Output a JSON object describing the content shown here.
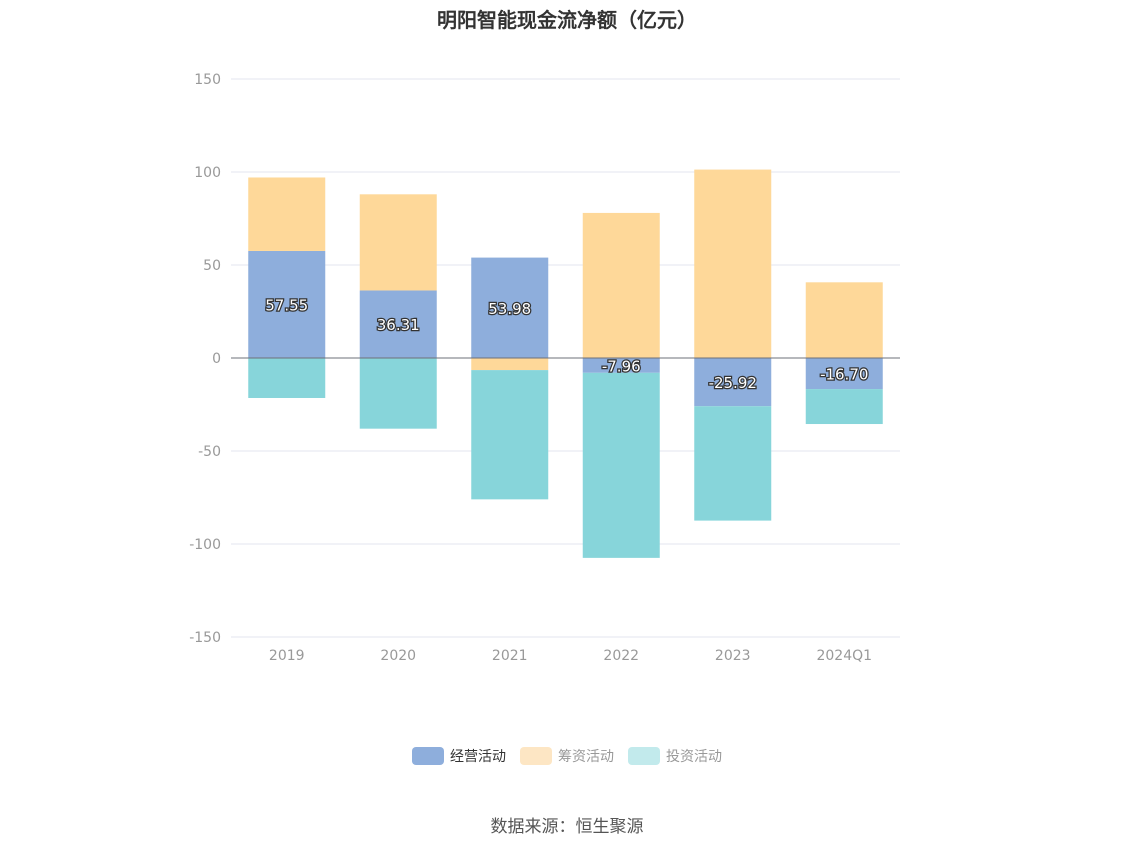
{
  "chart_data": {
    "type": "bar",
    "stacked": true,
    "title": "明阳智能现金流净额（亿元）",
    "categories": [
      "2019",
      "2020",
      "2021",
      "2022",
      "2023",
      "2024Q1"
    ],
    "ylim": [
      -150,
      150
    ],
    "yticks": [
      150,
      100,
      50,
      0,
      -50,
      -100,
      -150
    ],
    "grid": true,
    "legend_position": "bottom",
    "series": [
      {
        "name": "经营活动",
        "color": "#8eaedc",
        "values": [
          57.55,
          36.31,
          53.98,
          -7.96,
          -25.92,
          -16.7
        ],
        "labels": [
          "57.55",
          "36.31",
          "53.98",
          "-7.96",
          "-25.92",
          "-16.70"
        ]
      },
      {
        "name": "筹资活动",
        "color": "#fed899",
        "values": [
          39.5,
          51.7,
          -6.5,
          78.0,
          101.3,
          40.7
        ]
      },
      {
        "name": "投资活动",
        "color": "#87d5da",
        "values": [
          -21.5,
          -38.0,
          -69.5,
          -99.5,
          -61.5,
          -18.8
        ]
      }
    ]
  },
  "legend": [
    {
      "label": "经营活动",
      "color": "#8eaedc",
      "dim": false
    },
    {
      "label": "筹资活动",
      "color": "#fde6c4",
      "dim": true
    },
    {
      "label": "投资活动",
      "color": "#c2eaec",
      "dim": true
    }
  ],
  "source": "数据来源：恒生聚源"
}
